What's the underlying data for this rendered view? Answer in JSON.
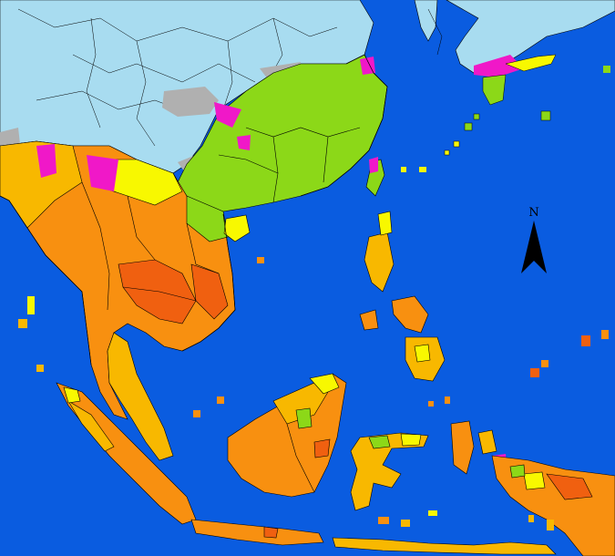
{
  "north_arrow": {
    "label": "N"
  },
  "colors": {
    "ocean": "#0a5ce0",
    "out_of_region_land": "#a8dcf0",
    "no_data": "#b0b0b0",
    "magenta": "#f018c8",
    "green": "#8cd818",
    "yellow": "#f8f800",
    "light_orange": "#f8b800",
    "orange": "#f89010",
    "dark_orange": "#f06010",
    "border": "#000000"
  },
  "legend": []
}
